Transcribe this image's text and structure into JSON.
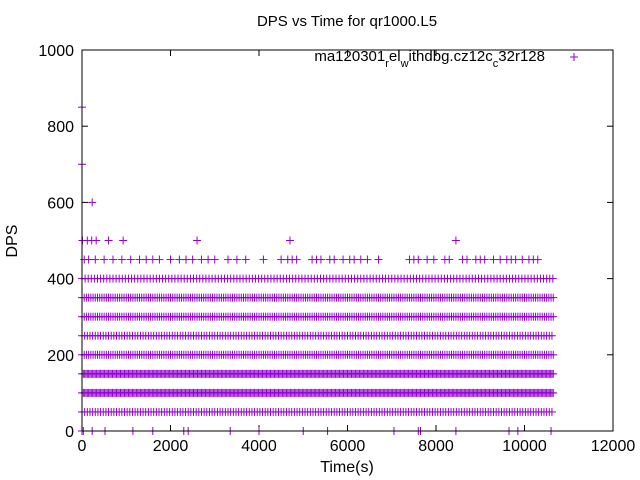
{
  "chart_data": {
    "type": "scatter",
    "title": "DPS vs Time for qr1000.L5",
    "xlabel": "Time(s)",
    "ylabel": "DPS",
    "xlim": [
      0,
      12000
    ],
    "ylim": [
      0,
      1000
    ],
    "xticks": [
      0,
      2000,
      4000,
      6000,
      8000,
      10000,
      12000
    ],
    "yticks": [
      0,
      200,
      400,
      600,
      800,
      1000
    ],
    "grid": false,
    "legend_position": "top-right",
    "marker": "plus",
    "series": [
      {
        "name_parts": [
          {
            "text": "ma120301",
            "sub": false
          },
          {
            "text": "r",
            "sub": true
          },
          {
            "text": "el",
            "sub": false
          },
          {
            "text": "w",
            "sub": true
          },
          {
            "text": "ithdbg.cz12c",
            "sub": false
          },
          {
            "text": "c",
            "sub": true
          },
          {
            "text": "32r128",
            "sub": false
          }
        ],
        "color": "#9400d3",
        "bands": [
          {
            "y": 50,
            "x_start": 0,
            "x_end": 10650,
            "step": 60
          },
          {
            "y": 100,
            "x_start": 0,
            "x_end": 10650,
            "step": 30
          },
          {
            "y": 150,
            "x_start": 0,
            "x_end": 10650,
            "step": 30
          },
          {
            "y": 200,
            "x_start": 0,
            "x_end": 10650,
            "step": 50
          },
          {
            "y": 250,
            "x_start": 0,
            "x_end": 10650,
            "step": 60
          },
          {
            "y": 300,
            "x_start": 0,
            "x_end": 10650,
            "step": 50
          },
          {
            "y": 350,
            "x_start": 0,
            "x_end": 10650,
            "step": 50
          },
          {
            "y": 400,
            "x_start": 0,
            "x_end": 10650,
            "step": 70
          }
        ],
        "points": [
          {
            "x": 0,
            "y": 850
          },
          {
            "x": 0,
            "y": 700
          },
          {
            "x": 10,
            "y": 500
          },
          {
            "x": 230,
            "y": 600
          },
          {
            "x": 120,
            "y": 500
          },
          {
            "x": 220,
            "y": 500
          },
          {
            "x": 320,
            "y": 500
          },
          {
            "x": 600,
            "y": 500
          },
          {
            "x": 930,
            "y": 500
          },
          {
            "x": 2600,
            "y": 500
          },
          {
            "x": 4700,
            "y": 500
          },
          {
            "x": 8450,
            "y": 500
          },
          {
            "x": 50,
            "y": 450
          },
          {
            "x": 150,
            "y": 450
          },
          {
            "x": 300,
            "y": 450
          },
          {
            "x": 500,
            "y": 450
          },
          {
            "x": 700,
            "y": 450
          },
          {
            "x": 900,
            "y": 450
          },
          {
            "x": 1100,
            "y": 450
          },
          {
            "x": 1300,
            "y": 450
          },
          {
            "x": 1450,
            "y": 450
          },
          {
            "x": 1600,
            "y": 450
          },
          {
            "x": 1750,
            "y": 450
          },
          {
            "x": 2000,
            "y": 450
          },
          {
            "x": 2200,
            "y": 450
          },
          {
            "x": 2350,
            "y": 450
          },
          {
            "x": 2500,
            "y": 450
          },
          {
            "x": 2700,
            "y": 450
          },
          {
            "x": 2850,
            "y": 450
          },
          {
            "x": 3000,
            "y": 450
          },
          {
            "x": 3300,
            "y": 450
          },
          {
            "x": 3500,
            "y": 450
          },
          {
            "x": 3700,
            "y": 450
          },
          {
            "x": 4100,
            "y": 450
          },
          {
            "x": 4500,
            "y": 450
          },
          {
            "x": 4650,
            "y": 450
          },
          {
            "x": 4750,
            "y": 450
          },
          {
            "x": 4850,
            "y": 450
          },
          {
            "x": 5200,
            "y": 450
          },
          {
            "x": 5300,
            "y": 450
          },
          {
            "x": 5400,
            "y": 450
          },
          {
            "x": 5600,
            "y": 450
          },
          {
            "x": 5700,
            "y": 450
          },
          {
            "x": 5900,
            "y": 450
          },
          {
            "x": 6050,
            "y": 450
          },
          {
            "x": 6150,
            "y": 450
          },
          {
            "x": 6300,
            "y": 450
          },
          {
            "x": 6450,
            "y": 450
          },
          {
            "x": 6700,
            "y": 450
          },
          {
            "x": 7400,
            "y": 450
          },
          {
            "x": 7500,
            "y": 450
          },
          {
            "x": 7600,
            "y": 450
          },
          {
            "x": 7800,
            "y": 450
          },
          {
            "x": 7950,
            "y": 450
          },
          {
            "x": 8200,
            "y": 450
          },
          {
            "x": 8300,
            "y": 450
          },
          {
            "x": 8600,
            "y": 450
          },
          {
            "x": 8700,
            "y": 450
          },
          {
            "x": 8900,
            "y": 450
          },
          {
            "x": 9000,
            "y": 450
          },
          {
            "x": 9100,
            "y": 450
          },
          {
            "x": 9300,
            "y": 450
          },
          {
            "x": 9450,
            "y": 450
          },
          {
            "x": 9600,
            "y": 450
          },
          {
            "x": 9700,
            "y": 450
          },
          {
            "x": 9800,
            "y": 450
          },
          {
            "x": 9950,
            "y": 450
          },
          {
            "x": 10100,
            "y": 450
          },
          {
            "x": 10200,
            "y": 450
          },
          {
            "x": 10300,
            "y": 450
          },
          {
            "x": 0,
            "y": 0
          },
          {
            "x": 30,
            "y": 0
          },
          {
            "x": 230,
            "y": 0
          },
          {
            "x": 520,
            "y": 0
          },
          {
            "x": 1150,
            "y": 0
          },
          {
            "x": 1600,
            "y": 0
          },
          {
            "x": 2300,
            "y": 0
          },
          {
            "x": 2400,
            "y": 0
          },
          {
            "x": 3350,
            "y": 0
          },
          {
            "x": 4000,
            "y": 0
          },
          {
            "x": 5000,
            "y": 0
          },
          {
            "x": 5550,
            "y": 0
          },
          {
            "x": 7050,
            "y": 0
          },
          {
            "x": 7600,
            "y": 0
          },
          {
            "x": 7650,
            "y": 0
          },
          {
            "x": 8450,
            "y": 0
          },
          {
            "x": 9650,
            "y": 0
          },
          {
            "x": 9850,
            "y": 0
          },
          {
            "x": 10600,
            "y": 0
          }
        ]
      }
    ]
  }
}
